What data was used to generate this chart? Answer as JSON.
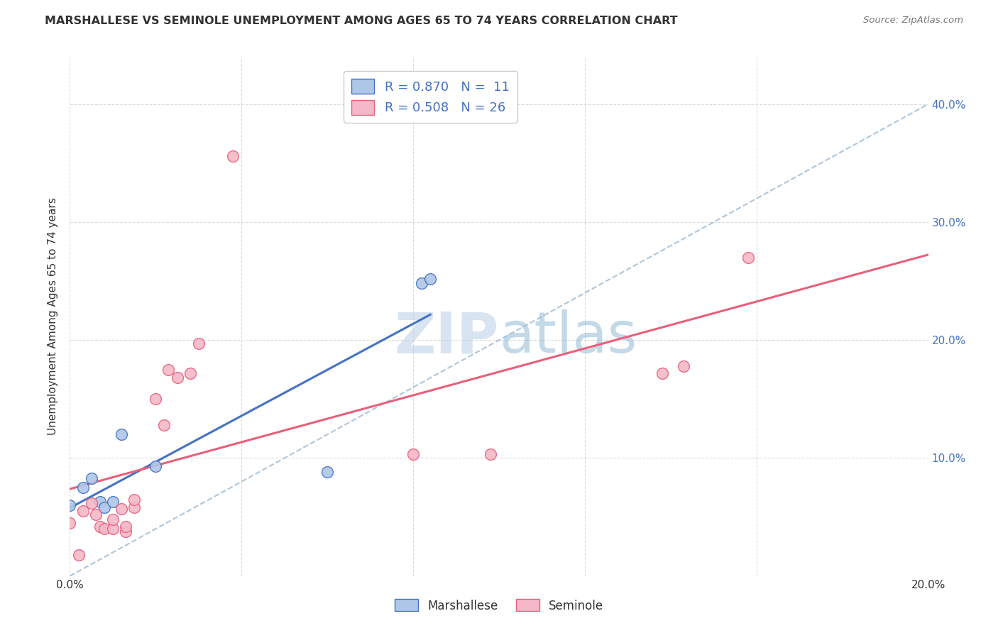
{
  "title": "MARSHALLESE VS SEMINOLE UNEMPLOYMENT AMONG AGES 65 TO 74 YEARS CORRELATION CHART",
  "source": "Source: ZipAtlas.com",
  "ylabel": "Unemployment Among Ages 65 to 74 years",
  "xlim": [
    0.0,
    0.2
  ],
  "ylim": [
    0.0,
    0.44
  ],
  "x_ticks": [
    0.0,
    0.04,
    0.08,
    0.12,
    0.16,
    0.2
  ],
  "x_tick_labels": [
    "0.0%",
    "",
    "",
    "",
    "",
    "20.0%"
  ],
  "y_ticks": [
    0.0,
    0.1,
    0.2,
    0.3,
    0.4
  ],
  "y_tick_labels_right": [
    "",
    "10.0%",
    "20.0%",
    "30.0%",
    "40.0%"
  ],
  "marshallese_R": "0.870",
  "marshallese_N": "11",
  "seminole_R": "0.508",
  "seminole_N": "26",
  "marshallese_color": "#aec6e8",
  "seminole_color": "#f4b8c8",
  "marshallese_line_color": "#4472C4",
  "seminole_line_color": "#e8607a",
  "diagonal_color": "#9ab8d0",
  "watermark_color": "#c5d8ee",
  "marshallese_scatter": [
    [
      0.0,
      0.06
    ],
    [
      0.003,
      0.075
    ],
    [
      0.005,
      0.083
    ],
    [
      0.007,
      0.063
    ],
    [
      0.008,
      0.058
    ],
    [
      0.01,
      0.063
    ],
    [
      0.012,
      0.12
    ],
    [
      0.02,
      0.093
    ],
    [
      0.06,
      0.088
    ],
    [
      0.082,
      0.248
    ],
    [
      0.084,
      0.252
    ]
  ],
  "seminole_scatter": [
    [
      0.0,
      0.045
    ],
    [
      0.002,
      0.018
    ],
    [
      0.003,
      0.055
    ],
    [
      0.005,
      0.062
    ],
    [
      0.006,
      0.052
    ],
    [
      0.007,
      0.042
    ],
    [
      0.008,
      0.04
    ],
    [
      0.01,
      0.04
    ],
    [
      0.01,
      0.048
    ],
    [
      0.012,
      0.057
    ],
    [
      0.013,
      0.038
    ],
    [
      0.013,
      0.042
    ],
    [
      0.015,
      0.058
    ],
    [
      0.015,
      0.065
    ],
    [
      0.02,
      0.15
    ],
    [
      0.022,
      0.128
    ],
    [
      0.023,
      0.175
    ],
    [
      0.025,
      0.168
    ],
    [
      0.028,
      0.172
    ],
    [
      0.03,
      0.197
    ],
    [
      0.038,
      0.356
    ],
    [
      0.08,
      0.103
    ],
    [
      0.098,
      0.103
    ],
    [
      0.138,
      0.172
    ],
    [
      0.143,
      0.178
    ],
    [
      0.158,
      0.27
    ]
  ]
}
